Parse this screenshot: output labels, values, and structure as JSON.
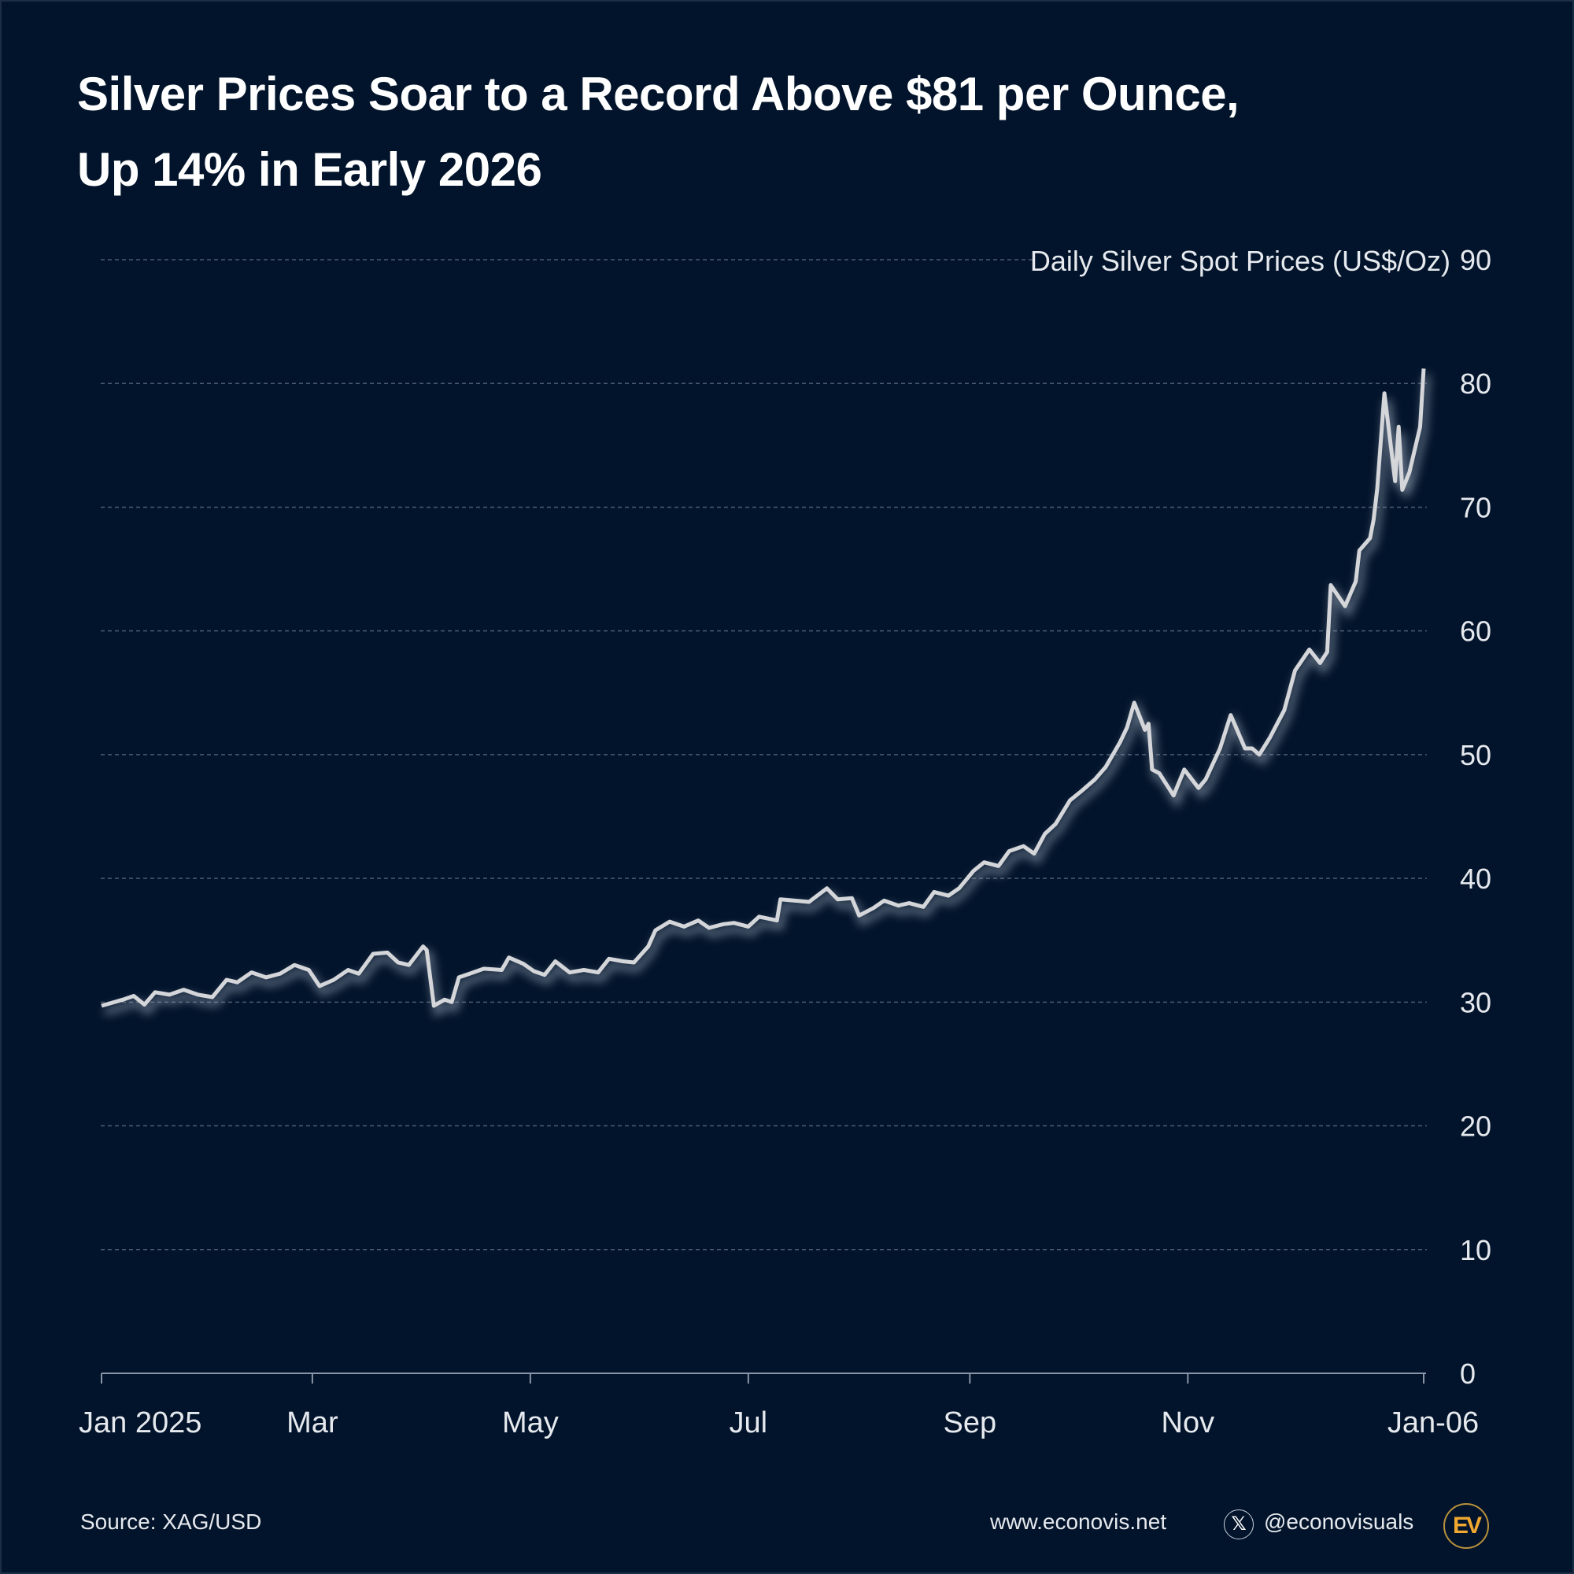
{
  "title_line1": "Silver Prices Soar to a Record Above $81 per Ounce,",
  "title_line2": "Up 14% in Early 2026",
  "footer": {
    "source": "Source: XAG/USD",
    "website": "www.econovis.net",
    "handle": "@econovisuals",
    "x_icon": "x-logo-icon",
    "logo_text": "EV"
  },
  "colors": {
    "background": "#02142b",
    "line": "#d4d6da",
    "grid": "#4a5a70",
    "logo": "#f0a830"
  },
  "chart_data": {
    "type": "line",
    "title": "Silver Prices Soar to a Record Above $81 per Ounce, Up 14% in Early 2026",
    "ylabel": "Daily Silver Spot Prices (US$/Oz)",
    "xlabel": "",
    "ylim": [
      0,
      90
    ],
    "yticks": [
      0,
      10,
      20,
      30,
      40,
      50,
      60,
      70,
      80,
      90
    ],
    "xticks": [
      {
        "date": "2025-01-01",
        "label": "Jan 2025"
      },
      {
        "date": "2025-03-01",
        "label": "Mar"
      },
      {
        "date": "2025-05-01",
        "label": "May"
      },
      {
        "date": "2025-07-01",
        "label": "Jul"
      },
      {
        "date": "2025-09-01",
        "label": "Sep"
      },
      {
        "date": "2025-11-01",
        "label": "Nov"
      },
      {
        "date": "2026-01-06",
        "label": "Jan-06"
      }
    ],
    "xlim": [
      "2025-01-01",
      "2026-01-06"
    ],
    "grid": "horizontal dashed",
    "series": [
      {
        "x": [
          "2025-01-01",
          "2025-01-07",
          "2025-01-10",
          "2025-01-13",
          "2025-01-16",
          "2025-01-20",
          "2025-01-24",
          "2025-01-28",
          "2025-02-01",
          "2025-02-05",
          "2025-02-08",
          "2025-02-12",
          "2025-02-16",
          "2025-02-20",
          "2025-02-24",
          "2025-02-28",
          "2025-03-03",
          "2025-03-07",
          "2025-03-11",
          "2025-03-14",
          "2025-03-18",
          "2025-03-22",
          "2025-03-25",
          "2025-03-28",
          "2025-04-01",
          "2025-04-02",
          "2025-04-04",
          "2025-04-07",
          "2025-04-09",
          "2025-04-11",
          "2025-04-14",
          "2025-04-18",
          "2025-04-23",
          "2025-04-25",
          "2025-04-29",
          "2025-05-02",
          "2025-05-05",
          "2025-05-08",
          "2025-05-12",
          "2025-05-16",
          "2025-05-20",
          "2025-05-23",
          "2025-05-27",
          "2025-05-30",
          "2025-06-03",
          "2025-06-05",
          "2025-06-09",
          "2025-06-13",
          "2025-06-17",
          "2025-06-20",
          "2025-06-24",
          "2025-06-27",
          "2025-07-01",
          "2025-07-04",
          "2025-07-09",
          "2025-07-10",
          "2025-07-14",
          "2025-07-18",
          "2025-07-23",
          "2025-07-26",
          "2025-07-30",
          "2025-08-01",
          "2025-08-05",
          "2025-08-08",
          "2025-08-12",
          "2025-08-15",
          "2025-08-19",
          "2025-08-22",
          "2025-08-26",
          "2025-08-29",
          "2025-09-02",
          "2025-09-05",
          "2025-09-09",
          "2025-09-12",
          "2025-09-16",
          "2025-09-19",
          "2025-09-22",
          "2025-09-25",
          "2025-09-29",
          "2025-10-02",
          "2025-10-06",
          "2025-10-09",
          "2025-10-13",
          "2025-10-15",
          "2025-10-17",
          "2025-10-20",
          "2025-10-21",
          "2025-10-22",
          "2025-10-24",
          "2025-10-28",
          "2025-10-31",
          "2025-11-04",
          "2025-11-06",
          "2025-11-10",
          "2025-11-13",
          "2025-11-17",
          "2025-11-19",
          "2025-11-21",
          "2025-11-24",
          "2025-11-26",
          "2025-11-28",
          "2025-12-01",
          "2025-12-05",
          "2025-12-08",
          "2025-12-10",
          "2025-12-11",
          "2025-12-15",
          "2025-12-18",
          "2025-12-19",
          "2025-12-22",
          "2025-12-23",
          "2025-12-24",
          "2025-12-26",
          "2025-12-29",
          "2025-12-30",
          "2025-12-31",
          "2026-01-02",
          "2026-01-05",
          "2026-01-06"
        ],
        "values": [
          29.7,
          30.2,
          30.5,
          29.8,
          30.8,
          30.6,
          31.0,
          30.6,
          30.4,
          31.8,
          31.6,
          32.4,
          32.0,
          32.3,
          33.0,
          32.6,
          31.3,
          31.8,
          32.6,
          32.3,
          33.9,
          34.0,
          33.2,
          33.0,
          34.5,
          34.2,
          29.7,
          30.2,
          30.0,
          32.0,
          32.3,
          32.7,
          32.6,
          33.6,
          33.1,
          32.5,
          32.2,
          33.3,
          32.4,
          32.6,
          32.4,
          33.5,
          33.3,
          33.2,
          34.5,
          35.8,
          36.5,
          36.1,
          36.6,
          36.0,
          36.3,
          36.4,
          36.1,
          36.9,
          36.6,
          38.3,
          38.2,
          38.1,
          39.2,
          38.3,
          38.4,
          37.0,
          37.6,
          38.2,
          37.8,
          38.0,
          37.7,
          38.9,
          38.6,
          39.2,
          40.6,
          41.3,
          41.0,
          42.2,
          42.6,
          42.0,
          43.6,
          44.4,
          46.3,
          47.0,
          48.0,
          49.0,
          51.0,
          52.2,
          54.2,
          52.0,
          52.5,
          48.8,
          48.5,
          46.7,
          48.8,
          47.3,
          48.0,
          50.5,
          53.2,
          50.5,
          50.5,
          50.0,
          51.4,
          52.5,
          53.6,
          56.8,
          58.5,
          57.4,
          58.3,
          63.7,
          62.0,
          64.0,
          66.5,
          67.5,
          69.0,
          71.5,
          79.2,
          72.1,
          76.5,
          71.4,
          72.8,
          76.5,
          81.2
        ]
      }
    ]
  }
}
